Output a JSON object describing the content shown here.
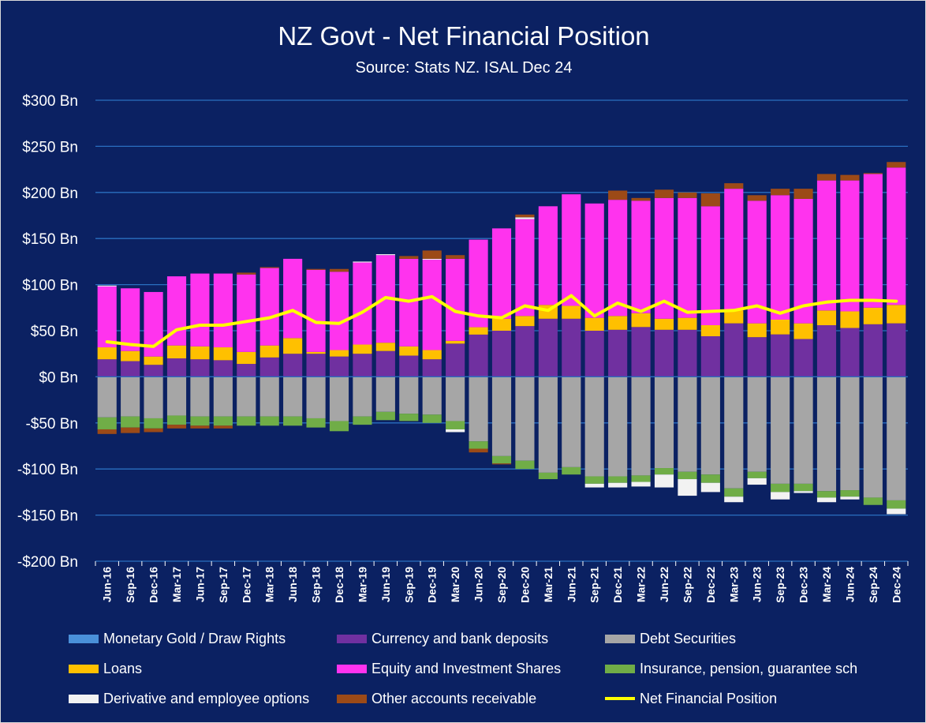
{
  "chart_data": {
    "type": "bar",
    "stacked": true,
    "title": "NZ Govt - Net Financial Position",
    "subtitle": "Source: Stats NZ. ISAL Dec 24",
    "y_unit_prefix": "$",
    "y_unit_suffix": " Bn",
    "ylim": [
      -200,
      300
    ],
    "y_ticks": [
      300,
      250,
      200,
      150,
      100,
      50,
      0,
      -50,
      -100,
      -150,
      -200
    ],
    "y_tick_labels": [
      "$300 Bn",
      "$250 Bn",
      "$200 Bn",
      "$150 Bn",
      "$100 Bn",
      "$50 Bn",
      "$0 Bn",
      "-$50 Bn",
      "-$100 Bn",
      "-$150 Bn",
      "-$200 Bn"
    ],
    "grid": true,
    "legend_position": "bottom",
    "categories": [
      "Jun-16",
      "Sep-16",
      "Dec-16",
      "Mar-17",
      "Jun-17",
      "Sep-17",
      "Dec-17",
      "Mar-18",
      "Jun-18",
      "Sep-18",
      "Dec-18",
      "Mar-19",
      "Jun-19",
      "Sep-19",
      "Dec-19",
      "Mar-20",
      "Jun-20",
      "Sep-20",
      "Dec-20",
      "Mar-21",
      "Jun-21",
      "Sep-21",
      "Dec-21",
      "Mar-22",
      "Jun-22",
      "Sep-22",
      "Dec-22",
      "Mar-23",
      "Jun-23",
      "Sep-23",
      "Dec-23",
      "Mar-24",
      "Jun-24",
      "Sep-24",
      "Dec-24"
    ],
    "series": [
      {
        "name": "Monetary Gold / Draw Rights",
        "color": "#4a90d9",
        "values": [
          0,
          0,
          0,
          0,
          0,
          0,
          0,
          0,
          0,
          0,
          0,
          0,
          0,
          0,
          0,
          0,
          0.8,
          0,
          0,
          0,
          0,
          0,
          0,
          0,
          0,
          0,
          0,
          0,
          0,
          0,
          0,
          0,
          0,
          0,
          0
        ]
      },
      {
        "name": "Currency and bank deposits",
        "color": "#7030a0",
        "values": [
          19,
          17,
          13,
          20,
          19,
          18,
          14,
          21,
          25,
          25,
          22,
          25,
          28,
          23,
          19,
          36,
          45,
          50,
          55,
          63,
          63,
          50,
          51,
          54,
          51,
          51,
          44,
          58,
          43,
          46,
          41,
          56,
          53,
          57,
          58
        ]
      },
      {
        "name": "Debt Securities",
        "color": "#a6a6a6",
        "values": [
          -44,
          -43,
          -45,
          -42,
          -43,
          -43,
          -43,
          -43,
          -43,
          -45,
          -48,
          -43,
          -38,
          -40,
          -41,
          -48,
          -70,
          -86,
          -91,
          -104,
          -98,
          -108,
          -108,
          -107,
          -99,
          -103,
          -106,
          -121,
          -103,
          -116,
          -116,
          -124,
          -123,
          -131,
          -134
        ]
      },
      {
        "name": "Loans",
        "color": "#ffc000",
        "values": [
          13,
          11,
          9,
          14,
          14,
          14,
          13,
          13,
          17,
          2,
          7,
          10,
          9,
          10,
          10,
          3,
          8,
          13,
          11,
          15,
          14,
          14,
          15,
          15,
          12,
          13,
          12,
          14,
          15,
          16,
          17,
          16,
          18,
          18,
          20
        ]
      },
      {
        "name": "Equity and Investment Shares",
        "color": "#ff33ee",
        "values": [
          66,
          68,
          70,
          75,
          79,
          80,
          84,
          84,
          86,
          89,
          85,
          89,
          95,
          95,
          98,
          89,
          95,
          98,
          105,
          107,
          121,
          124,
          126,
          122,
          131,
          130,
          129,
          132,
          133,
          135,
          135,
          141,
          142,
          145,
          149
        ]
      },
      {
        "name": "Insurance, pension, guarantee sch",
        "color": "#70ad47",
        "values": [
          -13,
          -12,
          -11,
          -10,
          -10,
          -10,
          -10,
          -10,
          -10,
          -10,
          -11,
          -9,
          -9,
          -8,
          -9,
          -9,
          -8,
          -8,
          -9,
          -7,
          -8,
          -8,
          -7,
          -7,
          -7,
          -8,
          -9,
          -9,
          -7,
          -9,
          -8,
          -7,
          -7,
          -8,
          -9
        ]
      },
      {
        "name": "Derivative and employee options",
        "color": "#f2f2f2",
        "values": [
          1,
          0,
          0,
          0,
          0,
          0,
          0,
          0,
          0,
          0,
          0,
          1,
          1,
          0,
          1,
          -3,
          0,
          0,
          2,
          0,
          0,
          -4,
          -5,
          -5,
          -14,
          -18,
          -10,
          -6,
          -7,
          -8,
          -2,
          -5,
          -3,
          0,
          -6
        ]
      },
      {
        "name": "Other accounts receivable",
        "color": "#9c4a17",
        "values": [
          -5,
          -6,
          -4,
          -4,
          -3,
          -3,
          2,
          1,
          0,
          1,
          3,
          0,
          0,
          3,
          9,
          4,
          -4,
          -1,
          3,
          0,
          0,
          0,
          10,
          3,
          9,
          6,
          14,
          6,
          6,
          7,
          11,
          7,
          6,
          1,
          6
        ]
      }
    ],
    "line_series": {
      "name": "Net Financial Position",
      "color": "#ffff00",
      "values": [
        38,
        35,
        33,
        51,
        56,
        56,
        60,
        64,
        72,
        59,
        58,
        70,
        86,
        82,
        87,
        71,
        66,
        64,
        77,
        72,
        88,
        66,
        80,
        71,
        82,
        70,
        71,
        72,
        77,
        69,
        77,
        81,
        83,
        83,
        82
      ]
    }
  }
}
